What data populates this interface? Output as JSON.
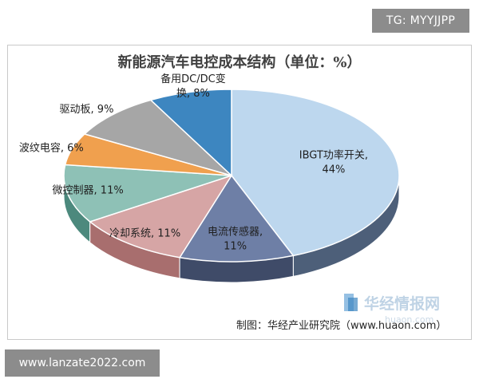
{
  "watermark_top": "TG: MYYJJPP",
  "watermark_bottom": "www.lanzate2022.com",
  "brand": {
    "name": "华经情报网",
    "url": "huaon.com"
  },
  "chart_data": {
    "type": "pie",
    "title": "新能源汽车电控成本结构（单位：%）",
    "source": "制图：华经产业研究院（www.huaon.com）",
    "slices": [
      {
        "label": "IBGT功率开关",
        "value": 44,
        "text": "IBGT功率开关,\n44%",
        "top": "#bdd7ee",
        "side": "#4d5f79"
      },
      {
        "label": "电流传感器",
        "value": 11,
        "text": "电流传感器,\n11%",
        "top": "#6e7fa6",
        "side": "#3f4b68"
      },
      {
        "label": "冷却系统",
        "value": 11,
        "text": "冷却系统, 11%",
        "top": "#d6a5a5",
        "side": "#a86e6e"
      },
      {
        "label": "微控制器",
        "value": 11,
        "text": "微控制器, 11%",
        "top": "#8ec1b6",
        "side": "#4c897d"
      },
      {
        "label": "波纹电容",
        "value": 6,
        "text": "波纹电容, 6%",
        "top": "#f0a04e",
        "side": "#c0721f"
      },
      {
        "label": "驱动板",
        "value": 9,
        "text": "驱动板, 9%",
        "top": "#a6a6a6",
        "side": "#737373"
      },
      {
        "label": "备用DC/DC变换",
        "value": 8,
        "text": "备用DC/DC变\n换, 8%",
        "top": "#3d86c0",
        "side": "#245d8c"
      }
    ],
    "legend": "none",
    "style": "3d-pie"
  }
}
